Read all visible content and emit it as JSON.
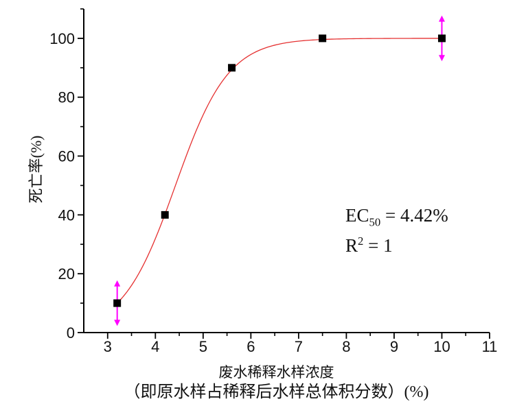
{
  "chart_data": {
    "type": "scatter",
    "title": "",
    "ylabel": "死亡率(%)",
    "xlabel_line1": "废水稀释水样浓度",
    "xlabel_line2": "（即原水样占稀释后水样总体积分数）(%)",
    "xlim": [
      2.5,
      11
    ],
    "ylim": [
      0,
      110
    ],
    "grid": false,
    "legend": "none",
    "x_major_ticks": [
      3,
      4,
      5,
      6,
      7,
      8,
      9,
      10,
      11
    ],
    "x_minor_ticks": [
      3.5,
      4.5,
      5.5,
      6.5,
      7.5,
      8.5,
      9.5,
      10.5
    ],
    "y_major_ticks": [
      0,
      20,
      40,
      60,
      80,
      100
    ],
    "y_minor_ticks": [
      10,
      30,
      50,
      70,
      90,
      110
    ],
    "points": [
      {
        "x": 3.2,
        "y": 10,
        "yerr": 4.5
      },
      {
        "x": 4.2,
        "y": 40
      },
      {
        "x": 5.6,
        "y": 90
      },
      {
        "x": 7.5,
        "y": 100
      },
      {
        "x": 10.0,
        "y": 100,
        "yerr": 4.5
      }
    ],
    "fit_curve": {
      "model": "boltzmann",
      "x0": 4.42,
      "dx": 0.5553,
      "bottom": 0,
      "top": 100,
      "x_start": 3.2,
      "x_end": 10.0
    },
    "annotations": [
      "EC50 = 4.42%",
      "R2 = 1"
    ],
    "colors": {
      "curve": "#e53030",
      "marker": "#000000",
      "error_bar": "#ff00ff",
      "axis": "#000000",
      "text": "#111111"
    }
  },
  "annotation_parts": {
    "ec_base": "EC",
    "ec_sub": "50",
    "ec_rest": " = 4.42%",
    "r2_base": "R",
    "r2_sup": "2",
    "r2_rest": " = 1"
  }
}
